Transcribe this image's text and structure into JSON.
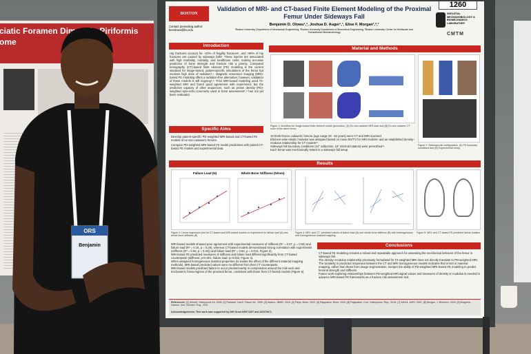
{
  "poster_number": "1260",
  "left_poster": {
    "title_1": "ciatic Foramen Dimensio",
    "title_2": "Piriformis",
    "title_3": "ome"
  },
  "badge": {
    "org": "ORS",
    "name": "Benjamin"
  },
  "main_poster": {
    "university": "BOSTON UNIVERSITY",
    "title_1": "Validation of MRI- and CT-based Finite Element Modeling of the Proximal",
    "title_2": "Femur Under Sideways Fall",
    "contact": "Contact presenting author:",
    "email": "benolowu@bu.edu",
    "authors": "Benjamin D. Olowu¹,³, Joshua D. Auger¹,³, Elise F. Morgan¹,²,³",
    "affiliations": "¹Boston University Department of Mechanical Engineering, ²Boston University Department of Biomedical Engineering, ³Boston University Center for Multiscale and Translational Mechanobiology",
    "lab": "SKELETAL MECHANOBIOLOGY & BIOMECHANICS LABORATORY",
    "center": "CMTM",
    "intro_heading": "Introduction",
    "intro_text": "Hip fractures account for ~20% of fragility fractures¹, and >90% of hip fractures are caused by sideways falls². These injuries are associated with high morbidity, mortality, and healthcare costs, making accurate prediction of bone strength and fracture risk a priority. Computed tomography (CT)-based finite element (FE) modeling is the current standard for image-based, patient-specific simulations of the femur but involves high dose of radiation³,⁴. Magnetic resonance imaging (MRI)-based FE modeling offers a radiation-free alternative; however, validation of these models is still ongoing⁵,⁶. Prior MRI-based modeling used T2-weighted MRI and found good agreement with experiment, but the predictive capacity of other sequences, such as proton density (PD)-weighted spin-echo commonly used in bone assessment⁷,⁸ has not yet been evaluated.",
    "aims_heading": "Specific Aims",
    "aims_1": "Develop patient-specific PD-weighted MRI-based and CT-based FE models of ex-vivo cadaveric femora.",
    "aims_2": "Compare PD-weighted MRI-based FE model predictions with paired CT-based FE models and experimental data.",
    "methods_heading": "Material and Methods",
    "fig1_caption": "Figure 1: Workflow for image-based finite element model generation. (A) Ex-vivo cadaver MRI scan and (B) Ex-vivo cadaver CT scan of the same femur.",
    "fig2_caption": "Figure 2: Sideways fall configuration. (A) FE boundary conditions and (B) Experimental setup.",
    "methods_1": "10 fresh-frozen cadaveric femora (age range 26 - 84 years) were CT and MRI scanned.",
    "methods_2": "Element-wise elastic modulus was assigned based on mean BV/TV for MRI models⁹ and an established density–modulus relationship for CT models¹⁰.",
    "methods_3": "Sideways fall boundary conditions (10° adduction, 15° internal rotation) were prescribed¹¹.",
    "methods_4": "Each femur was mechanically tested in a sideways fall setup.",
    "results_heading": "Results",
    "chart_a_title": "Failure Load (N)",
    "chart_b_title": "Whole Bone Stiffness (N/mm)",
    "fig3_caption": "Figure 3: Linear regression plot for CT-based and MRI-based models vs experiment for failure load (A) and whole bone stiffness (B)",
    "fig4_caption": "Figure 4: MRI- and CT- predicted values of failure load (A) and whole bone stiffness (B) with heterogeneous and homogeneous material mapping.",
    "fig5_caption": "Figure 5: MRI- and CT-based FE-predicted failure location",
    "results_1": "MRI-based models showed poor agreement with experimental measures of stiffness (R² = 0.07, p = 0.50) and failure load (R² = 0.16, p = 0.29), whereas CT-based models demonstrated strong correlation with experiments (stiffness (R² = 0.56, p = 0.02)) and failure load (R² = 0.60, p = 0.014, Figure 3).",
    "results_2": "MRI-based FE predicted measures of stiffness and failure load differed significantly from CT-based counterparts (stiffness: p<0.001; failure load: p=0.032, Figure 4).",
    "results_3": "When assigned homogeneous material properties (to isolate the effect of the different material mapping methods), MRI-based predicted values were no different from their CT counterparts.",
    "results_4": "MRI-based models predicted failure to occur predominantly in compression around the mid-neck and trochanteric fossa regions of the proximal femur, consistent with those from CT-based models (Figure 5).",
    "conclusions_heading": "Conclusions",
    "conc_1": "CT-based FE modeling remains a robust and repeatable approach for assessing the mechanical behavior of the femur in sideways fall.",
    "conc_2": "The density–modulus relationship previously formulated for T2-weighted MRI does not directly translate to PD-weighted MRI.",
    "conc_3": "The similarity in predicted responses between the CT and MRI homogeneous models indicates that errors in material mapping, rather than those from image segmentation, hamper the ability of PD-weighted MRI-based FE modeling to predict femoral strength and stiffness.",
    "conc_4": "Future work exploring relationships between PD-weighted MRI signal values and measures of density or modulus is needed to advance MRI-based FE frameworks as a fracture risk assessment tool.",
    "references_label": "References:",
    "references": "[1] Johnell, Osteoporos Int, 2006. [2] Parkkari, Calcif. Tissue Int., 1999. [3] Adams, JBMR, 2018. [4] Fleps, Bone, 2022. [5] Rajapakse, Bone, 2020. [6] Rajapakse, Curr. Osteoporos. Rep., 2018. [7] Wehrli, JMRI, 2007. [8] Morgan, J. Biomech, 2003. [9] Dragomir-Daescu, Ann. Biomed. Eng., 2011.",
    "acknowledgements": "Acknowledgements: This work was supported by NIH Grant AR071657 and AG073671."
  }
}
